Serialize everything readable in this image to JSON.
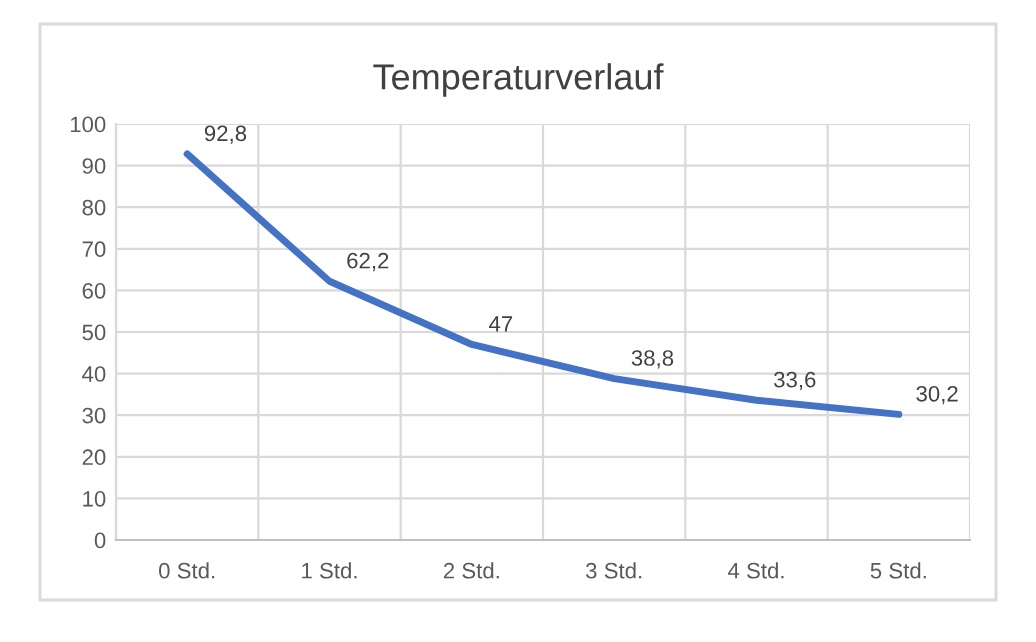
{
  "chart_data": {
    "type": "line",
    "title": "Temperaturverlauf",
    "categories": [
      "0 Std.",
      "1 Std.",
      "2 Std.",
      "3 Std.",
      "4 Std.",
      "5 Std."
    ],
    "series": [
      {
        "color": "#4472c4",
        "values": [
          92.8,
          62.2,
          47,
          38.8,
          33.6,
          30.2
        ],
        "value_labels": [
          "92,8",
          "62,2",
          "47",
          "38,8",
          "33,6",
          "30,2"
        ]
      }
    ],
    "ylim": [
      0,
      100
    ],
    "yticks": [
      0,
      10,
      20,
      30,
      40,
      50,
      60,
      70,
      80,
      90,
      100
    ],
    "grid": true,
    "marker": "none",
    "line_style": "solid"
  }
}
